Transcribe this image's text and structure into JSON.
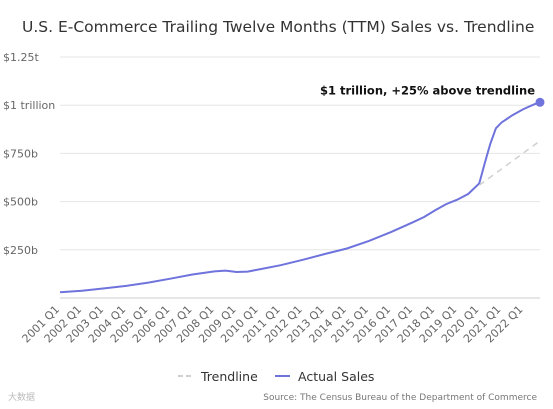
{
  "chart_data": {
    "type": "line",
    "title": "U.S. E-Commerce Trailing Twelve Months (TTM) Sales vs. Trendline",
    "y_ticks": [
      "$1.25t",
      "$1 trillion",
      "$750b",
      "$500b",
      "$250b"
    ],
    "y_tick_values": [
      1250,
      1000,
      750,
      500,
      250
    ],
    "ylim": [
      0,
      1250
    ],
    "y_unit": "billions of USD",
    "x_ticks": [
      "2001 Q1",
      "2002 Q1",
      "2003 Q1",
      "2004 Q1",
      "2005 Q1",
      "2006 Q1",
      "2007 Q1",
      "2008 Q1",
      "2009 Q1",
      "2010 Q1",
      "2011 Q1",
      "2012 Q1",
      "2013 Q1",
      "2014 Q1",
      "2015 Q1",
      "2016 Q1",
      "2017 Q1",
      "2018 Q1",
      "2019 Q1",
      "2020 Q1",
      "2021 Q1",
      "2022 Q1"
    ],
    "x_range": [
      2001.0,
      2022.75
    ],
    "grid": "horizontal",
    "legend_position": "bottom",
    "series": [
      {
        "name": "Actual Sales",
        "color": "#6f73dc",
        "style": "solid",
        "points": [
          [
            2001.0,
            30
          ],
          [
            2002.0,
            38
          ],
          [
            2003.0,
            50
          ],
          [
            2004.0,
            63
          ],
          [
            2005.0,
            80
          ],
          [
            2006.0,
            100
          ],
          [
            2007.0,
            122
          ],
          [
            2008.0,
            138
          ],
          [
            2008.5,
            142
          ],
          [
            2009.0,
            135
          ],
          [
            2009.5,
            137
          ],
          [
            2010.0,
            148
          ],
          [
            2011.0,
            170
          ],
          [
            2012.0,
            198
          ],
          [
            2013.0,
            228
          ],
          [
            2014.0,
            257
          ],
          [
            2015.0,
            296
          ],
          [
            2016.0,
            342
          ],
          [
            2017.0,
            393
          ],
          [
            2017.5,
            420
          ],
          [
            2018.0,
            455
          ],
          [
            2018.5,
            487
          ],
          [
            2019.0,
            510
          ],
          [
            2019.5,
            540
          ],
          [
            2020.0,
            595
          ],
          [
            2020.25,
            700
          ],
          [
            2020.5,
            800
          ],
          [
            2020.75,
            880
          ],
          [
            2021.0,
            910
          ],
          [
            2021.5,
            948
          ],
          [
            2022.0,
            980
          ],
          [
            2022.5,
            1005
          ],
          [
            2022.75,
            1015
          ]
        ]
      },
      {
        "name": "Trendline",
        "color": "#d0d0d0",
        "style": "dashed",
        "points": [
          [
            2020.0,
            585
          ],
          [
            2022.75,
            815
          ]
        ]
      }
    ],
    "annotation": {
      "text": "$1 trillion, +25% above trendline",
      "x": 2022.75,
      "y": 1015
    },
    "source": "Source: The Census Bureau of the Department of Commerce",
    "watermark": "大数据"
  }
}
